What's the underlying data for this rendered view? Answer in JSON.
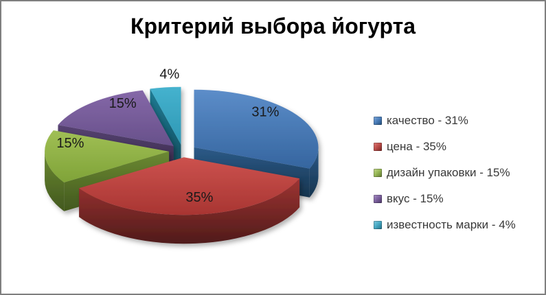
{
  "window": {
    "background": "#ffffff",
    "border_color": "#7f7f7f"
  },
  "title": "Критерий выбора йогурта",
  "chart_data": {
    "type": "pie",
    "style": "3d-exploded",
    "title": "Критерий выбора йогурта",
    "legend_position": "right",
    "start_angle_deg": 0,
    "direction": "clockwise",
    "labels": [
      "качество",
      "цена",
      "дизайн упаковки",
      "вкус",
      "известность марки"
    ],
    "values": [
      31,
      35,
      15,
      15,
      4
    ],
    "series": [
      {
        "label": "качество",
        "value": 31,
        "display": "31%",
        "legend_text": "качество - 31%",
        "top_light": "#5C8DC9",
        "top_dark": "#35659F",
        "side_light": "#2C5A88",
        "side_dark": "#16344E",
        "marker": {
          "light": "#7FA8D9",
          "base": "#4F81BD",
          "dark": "#1F4C7A"
        }
      },
      {
        "label": "цена",
        "value": 35,
        "display": "35%",
        "legend_text": "цена - 35%",
        "top_light": "#CC524E",
        "top_dark": "#A83532",
        "side_light": "#9E3432",
        "side_dark": "#4F1B1A",
        "marker": {
          "light": "#DE7D7A",
          "base": "#C0504D",
          "dark": "#7A2220"
        }
      },
      {
        "label": "дизайн упаковки",
        "value": 15,
        "display": "15%",
        "legend_text": "дизайн упаковки - 15%",
        "top_light": "#A0BF55",
        "top_dark": "#7FA338",
        "side_light": "#6B8932",
        "side_dark": "#42581E",
        "marker": {
          "light": "#C3D68E",
          "base": "#9BBB59",
          "dark": "#5F7730"
        }
      },
      {
        "label": "вкус",
        "value": 15,
        "display": "15%",
        "legend_text": "вкус - 15%",
        "top_light": "#8568A8",
        "top_dark": "#67508A",
        "side_light": "#574372",
        "side_dark": "#332645",
        "marker": {
          "light": "#A991C4",
          "base": "#8064A2",
          "dark": "#4A3666"
        }
      },
      {
        "label": "известность марки",
        "value": 4,
        "display": "4%",
        "legend_text": "известность марки - 4%",
        "top_light": "#45B2CE",
        "top_dark": "#2E97B4",
        "side_light": "#1E7B94",
        "side_dark": "#124B5B",
        "marker": {
          "light": "#7FC8DC",
          "base": "#4BACC6",
          "dark": "#1F6E86"
        }
      }
    ]
  }
}
